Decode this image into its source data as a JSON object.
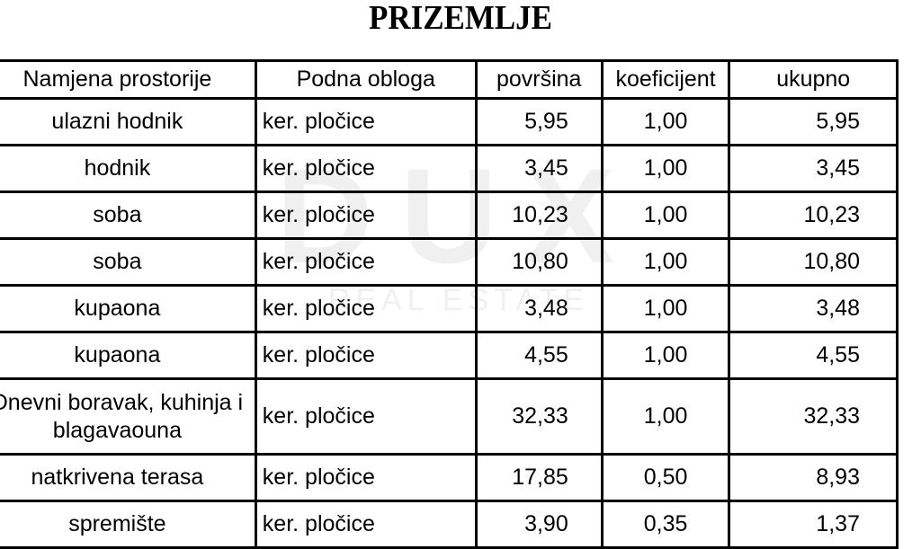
{
  "title": "PRIZEMLJE",
  "watermark": {
    "logo": "DUX",
    "sub": "REAL ESTATE"
  },
  "table": {
    "headers": [
      "Namjena prostorije",
      "Podna obloga",
      "površina",
      "koeficijent",
      "ukupno"
    ],
    "rows": [
      {
        "name": "ulazni hodnik",
        "floor": "ker. pločice",
        "area": "5,95",
        "coef": "1,00",
        "total": "5,95"
      },
      {
        "name": "hodnik",
        "floor": "ker. pločice",
        "area": "3,45",
        "coef": "1,00",
        "total": "3,45"
      },
      {
        "name": "soba",
        "floor": "ker. pločice",
        "area": "10,23",
        "coef": "1,00",
        "total": "10,23"
      },
      {
        "name": "soba",
        "floor": "ker. pločice",
        "area": "10,80",
        "coef": "1,00",
        "total": "10,80"
      },
      {
        "name": "kupaona",
        "floor": "ker. pločice",
        "area": "3,48",
        "coef": "1,00",
        "total": "3,48"
      },
      {
        "name": "kupaona",
        "floor": "ker. pločice",
        "area": "4,55",
        "coef": "1,00",
        "total": "4,55"
      },
      {
        "name": "Dnevni boravak, kuhinja i blagavaouna",
        "floor": "ker. pločice",
        "area": "32,33",
        "coef": "1,00",
        "total": "32,33"
      },
      {
        "name": "natkrivena terasa",
        "floor": "ker. pločice",
        "area": "17,85",
        "coef": "0,50",
        "total": "8,93"
      },
      {
        "name": "spremište",
        "floor": "ker. pločice",
        "area": "3,90",
        "coef": "0,35",
        "total": "1,37"
      }
    ]
  }
}
